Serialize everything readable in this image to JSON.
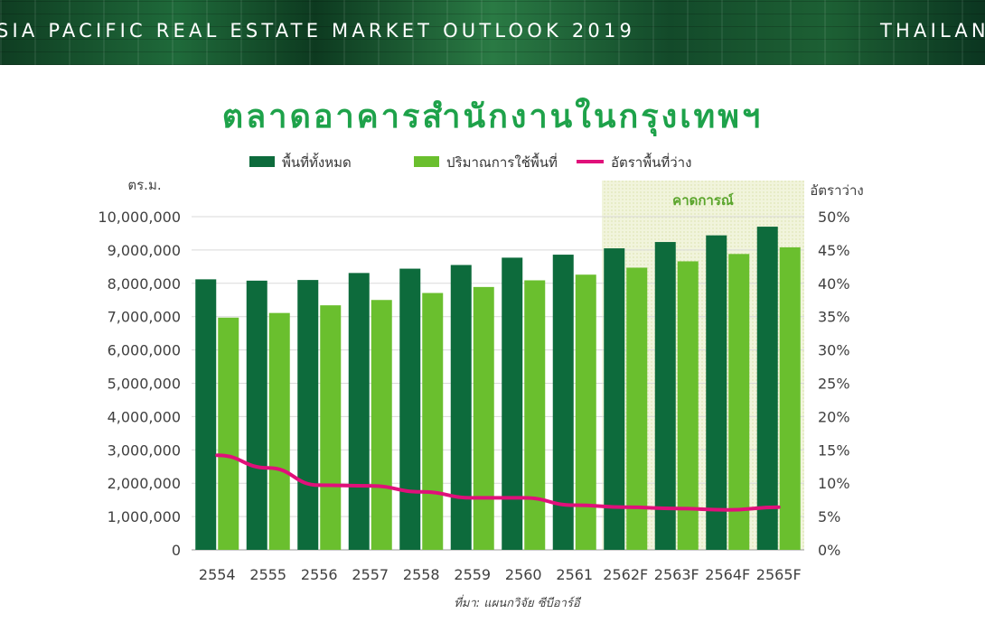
{
  "header": {
    "left_text": "SIA PACIFIC REAL ESTATE MARKET OUTLOOK 2019",
    "right_text": "THAILAN"
  },
  "chart_data": {
    "type": "bar",
    "title": "ตลาดอาคารสำนักงานในกรุงเทพฯ",
    "ylabel": "ตร.ม.",
    "y2label": "อัตราว่าง",
    "ylim": [
      0,
      10000000
    ],
    "y2lim": [
      0,
      50
    ],
    "categories": [
      "2554",
      "2555",
      "2556",
      "2557",
      "2558",
      "2559",
      "2560",
      "2561",
      "2562F",
      "2563F",
      "2564F",
      "2565F"
    ],
    "series": [
      {
        "name": "พื้นที่ทั้งหมด",
        "type": "bar",
        "color": "#0d6b3c",
        "values": [
          8120000,
          8080000,
          8100000,
          8310000,
          8440000,
          8550000,
          8770000,
          8860000,
          9050000,
          9240000,
          9440000,
          9700000
        ]
      },
      {
        "name": "ปริมาณการใช้พื้นที่",
        "type": "bar",
        "color": "#6abf2e",
        "values": [
          6970000,
          7110000,
          7340000,
          7500000,
          7710000,
          7890000,
          8090000,
          8260000,
          8470000,
          8660000,
          8880000,
          9080000
        ]
      },
      {
        "name": "อัตราพื้นที่ว่าง",
        "type": "line",
        "axis": "right",
        "color": "#e0107a",
        "values": [
          14.2,
          12.3,
          9.7,
          9.6,
          8.7,
          7.8,
          7.8,
          6.7,
          6.4,
          6.2,
          6.0,
          6.4
        ]
      }
    ],
    "y_ticks": [
      "0",
      "1,000,000",
      "2,000,000",
      "3,000,000",
      "4,000,000",
      "5,000,000",
      "6,000,000",
      "7,000,000",
      "8,000,000",
      "9,000,000",
      "10,000,000"
    ],
    "y2_ticks": [
      "0%",
      "5%",
      "10%",
      "15%",
      "20%",
      "25%",
      "30%",
      "35%",
      "40%",
      "45%",
      "50%"
    ],
    "forecast": {
      "label": "คาดการณ์",
      "from_category": "2562F",
      "to_category": "2565F"
    },
    "source": "ที่มา: แผนกวิจัย ซีบีอาร์อี",
    "grid": true,
    "legend_position": "top"
  }
}
